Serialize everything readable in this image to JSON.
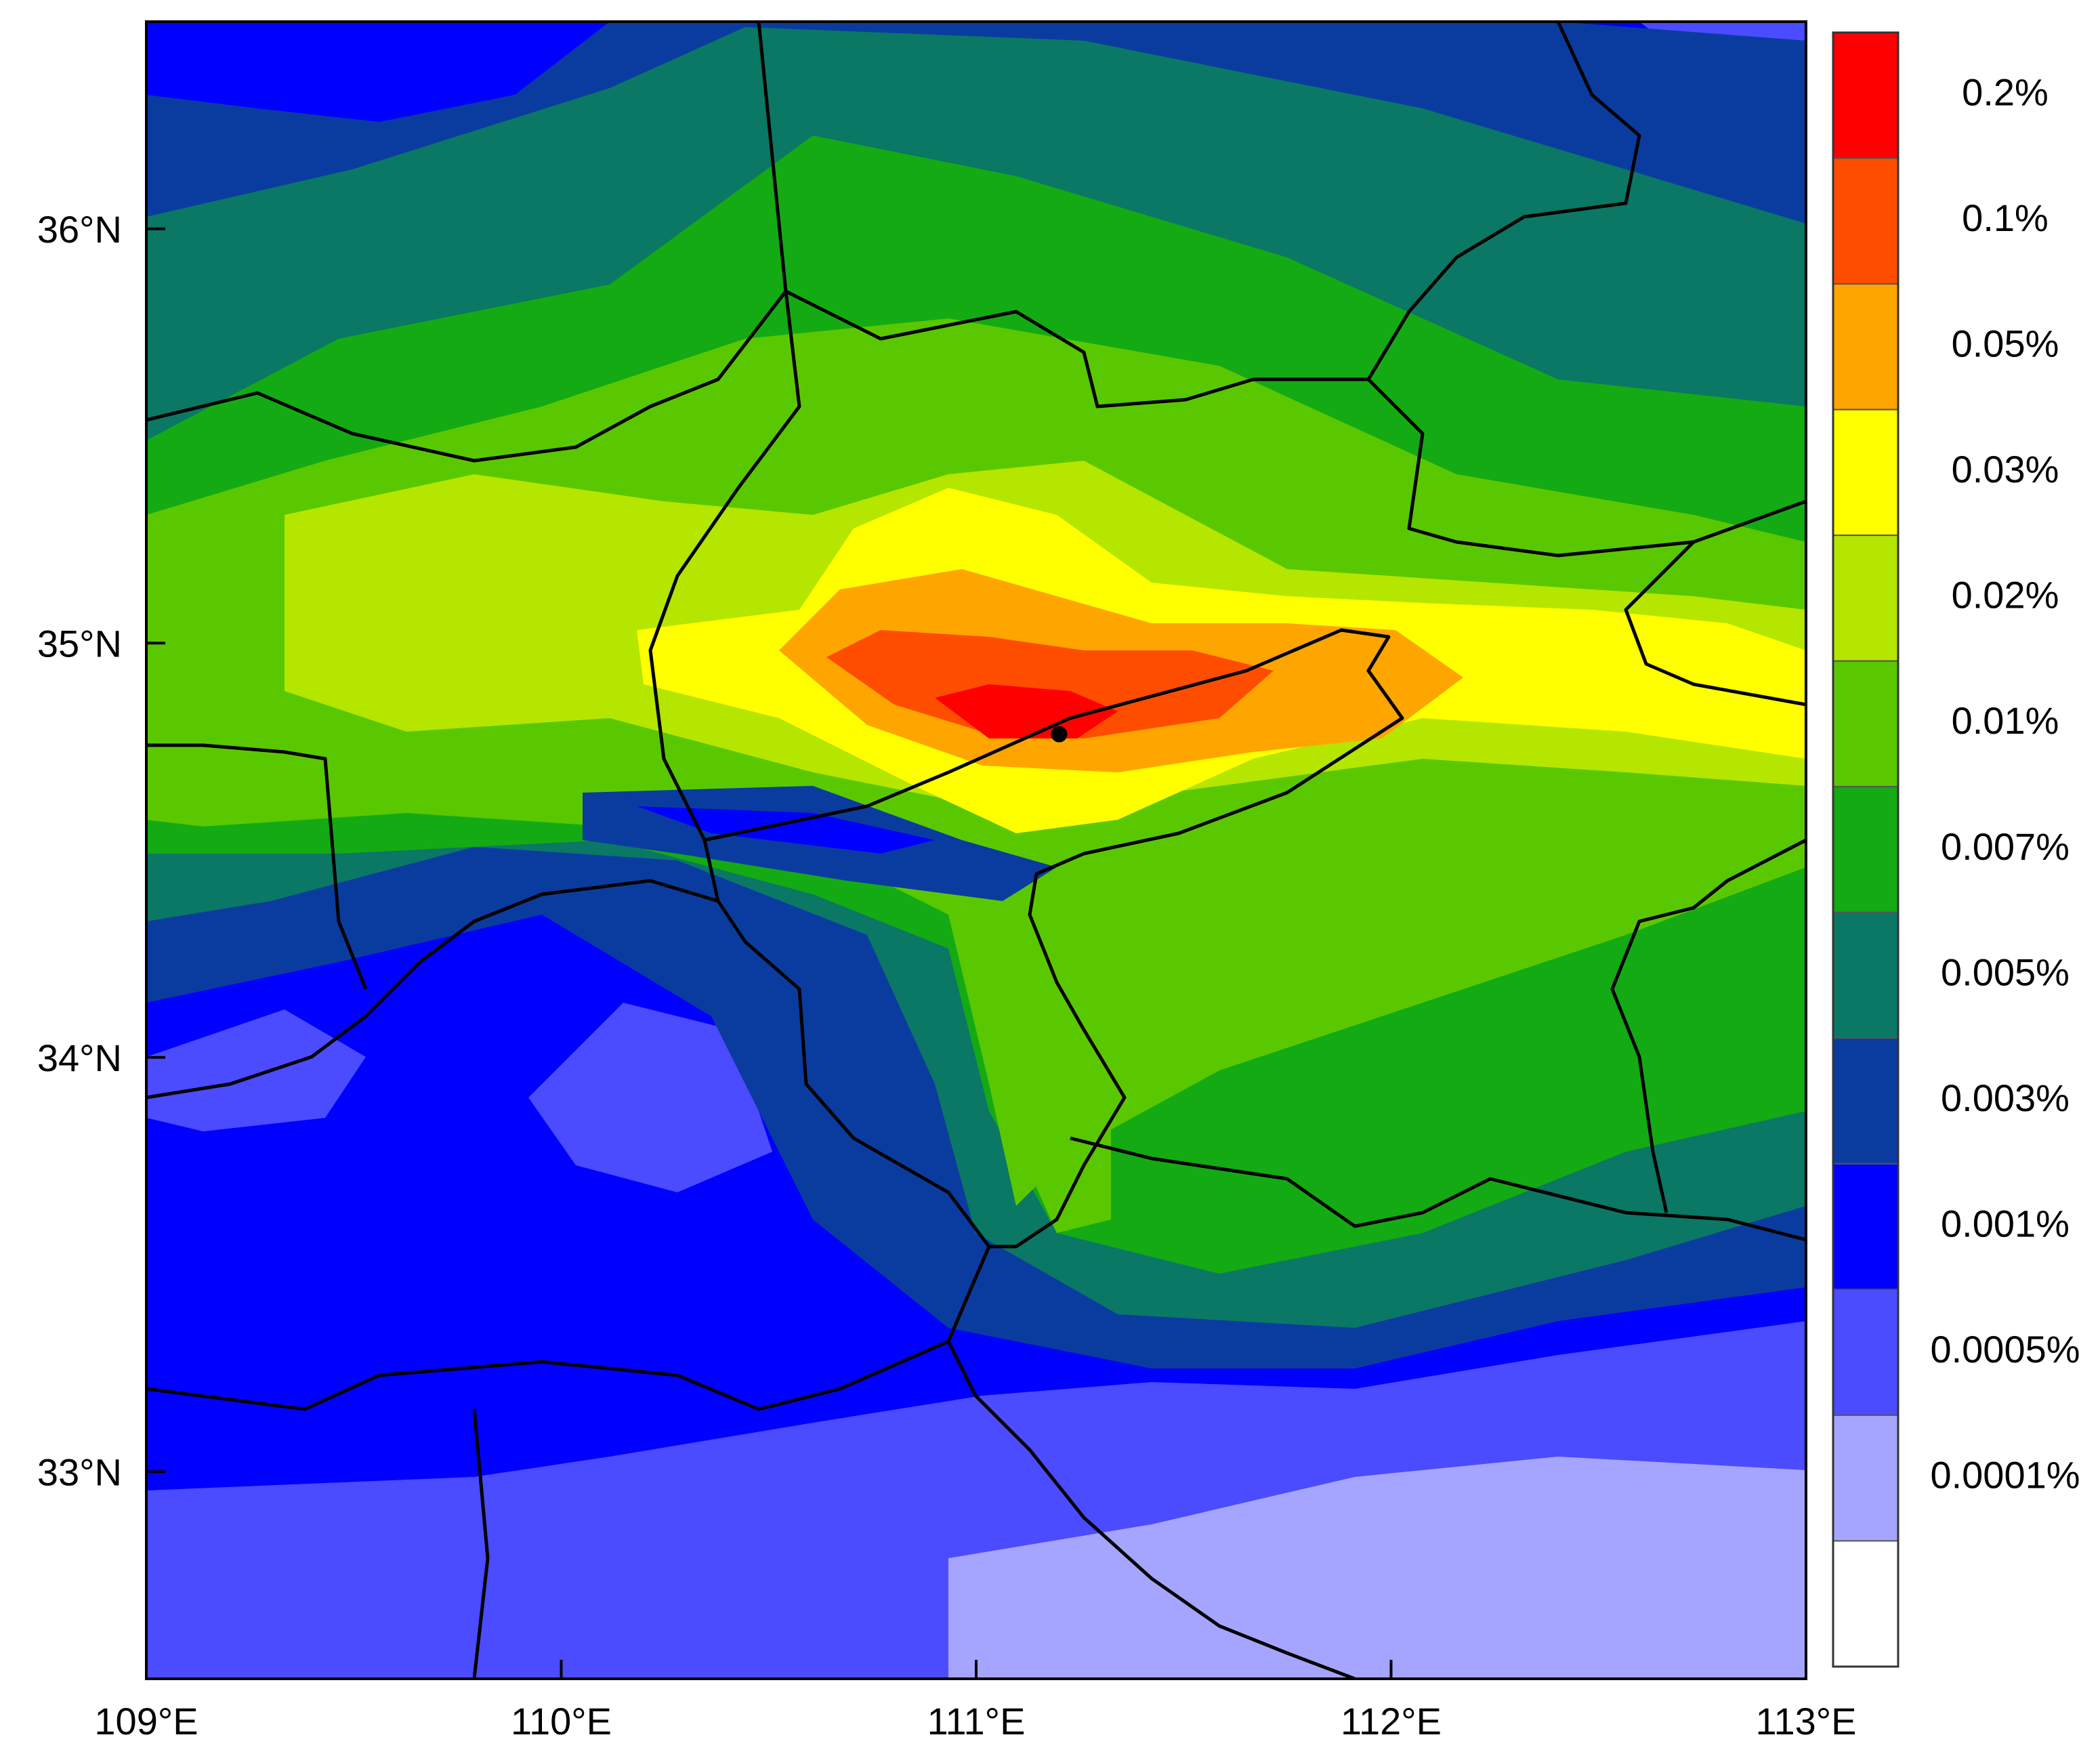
{
  "map": {
    "x_ticks": [
      "109°E",
      "110°E",
      "111°E",
      "112°E",
      "113°E"
    ],
    "y_ticks": [
      "36°N",
      "35°N",
      "34°N",
      "33°N"
    ],
    "lon_range": [
      109,
      113
    ],
    "lat_range": [
      32.5,
      36.5
    ],
    "source_marker": {
      "lon": 111.2,
      "lat": 34.78
    }
  },
  "legend": {
    "colors": [
      "#ff0000",
      "#ff4d00",
      "#ffa500",
      "#ffff00",
      "#b4e600",
      "#5ac800",
      "#14aa14",
      "#0a7864",
      "#0a3ca0",
      "#0000ff",
      "#4b4bff",
      "#a5a5ff",
      "#ffffff"
    ],
    "labels": [
      "0.2%",
      "0.1%",
      "0.05%",
      "0.03%",
      "0.02%",
      "0.01%",
      "0.007%",
      "0.005%",
      "0.003%",
      "0.001%",
      "0.0005%",
      "0.0001%"
    ]
  }
}
